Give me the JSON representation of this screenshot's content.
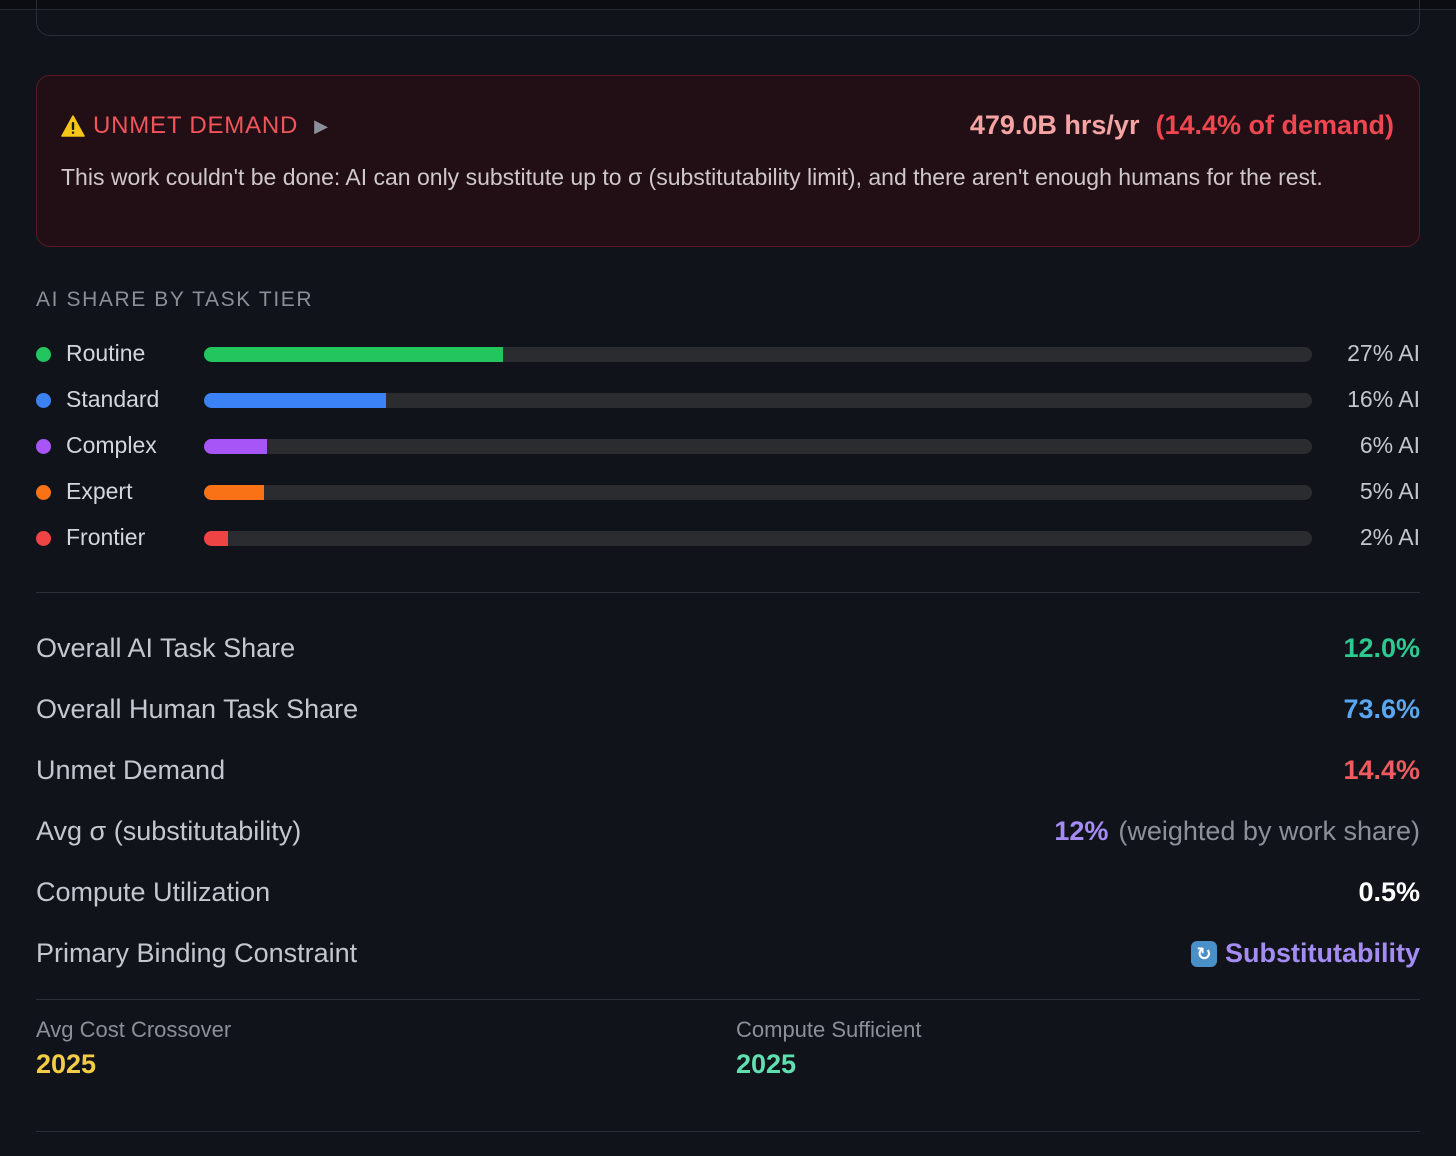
{
  "alert": {
    "title": "UNMET DEMAND",
    "value": "479.0B hrs/yr",
    "percent": "(14.4% of demand)",
    "description": "This work couldn't be done: AI can only substitute up to σ (substitutability limit), and there aren't enough humans for the rest.",
    "icons": {
      "warning": "warning-icon",
      "expand": "play-icon"
    }
  },
  "tiers": {
    "heading": "AI SHARE BY TASK TIER",
    "items": [
      {
        "name": "Routine",
        "share": 27,
        "label": "27% AI",
        "color": "#22c55e"
      },
      {
        "name": "Standard",
        "share": 16.4,
        "label": "16% AI",
        "color": "#3b82f6"
      },
      {
        "name": "Complex",
        "share": 5.7,
        "label": "6% AI",
        "color": "#a855f7"
      },
      {
        "name": "Expert",
        "share": 5.4,
        "label": "5% AI",
        "color": "#f97316"
      },
      {
        "name": "Frontier",
        "share": 2.2,
        "label": "2% AI",
        "color": "#ef4444"
      }
    ]
  },
  "stats": [
    {
      "label": "Overall AI Task Share",
      "value": "12.0%",
      "color": "#2ec990"
    },
    {
      "label": "Overall Human Task Share",
      "value": "73.6%",
      "color": "#5aa7ef"
    },
    {
      "label": "Unmet Demand",
      "value": "14.4%",
      "color": "#ef5b5f"
    },
    {
      "label": "Avg σ (substitutability)",
      "value": "12%",
      "note": "(weighted by work share)",
      "color": "#a58cf5"
    },
    {
      "label": "Compute Utilization",
      "value": "0.5%",
      "color": "#ffffff"
    },
    {
      "label": "Primary Binding Constraint",
      "value": "Substitutability",
      "icon": "swap-icon",
      "color": "#a58cf5"
    }
  ],
  "summary": {
    "crossover_label": "Avg Cost Crossover",
    "crossover_value": "2025",
    "crossover_color": "#f5cc45",
    "compute_label": "Compute Sufficient",
    "compute_value": "2025",
    "compute_color": "#5fe0b0"
  }
}
